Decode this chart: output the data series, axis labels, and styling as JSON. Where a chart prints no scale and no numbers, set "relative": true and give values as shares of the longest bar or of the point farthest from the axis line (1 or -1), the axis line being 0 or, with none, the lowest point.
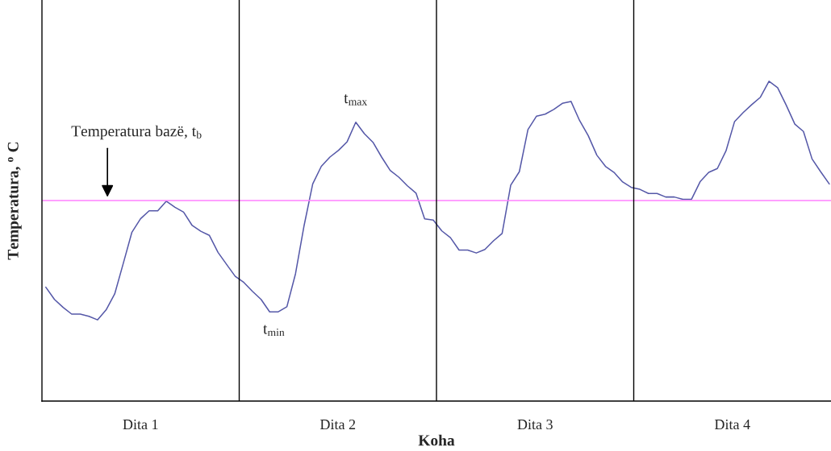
{
  "chart_data": {
    "type": "line",
    "relative": true,
    "xlabel": "Koha",
    "ylabel": "Temperatura, $^{o}$ C",
    "categories": [
      null,
      null,
      null,
      null,
      null,
      null,
      null,
      null,
      null,
      null,
      null,
      null,
      null,
      null,
      null,
      null,
      null,
      null,
      null,
      null,
      null,
      null,
      null,
      null,
      null,
      null,
      null,
      null,
      null,
      null,
      null,
      null,
      null,
      null,
      null,
      null,
      null,
      null,
      null,
      null,
      null,
      null,
      null,
      null,
      null,
      null,
      null,
      null,
      null,
      null,
      null,
      null,
      null,
      null,
      null,
      null,
      null,
      null,
      null,
      null,
      null,
      null,
      null,
      null,
      null,
      null,
      null,
      null,
      null,
      null,
      null,
      null,
      null,
      null,
      null,
      null,
      null,
      null,
      null,
      null,
      null,
      null,
      null,
      null,
      null,
      null,
      null,
      null,
      null,
      null,
      null,
      null
    ],
    "legend": false,
    "marker": "none",
    "line_style": "solid",
    "ref_lines": [
      {
        "axis": "y",
        "value": 0.627,
        "label": "Temperatura bazë, t$_{b}$",
        "color": "#ff80ff"
      }
    ],
    "annotations": [
      {
        "text": "t$_{max}$",
        "y": 0.872
      },
      {
        "text": "t$_{min}$",
        "y": 0.279
      },
      "Dita 1",
      "Dita 2",
      "Dita 3",
      "Dita 4"
    ],
    "series": [
      {
        "color": "#5558a8",
        "values": [
          0.356,
          0.318,
          0.293,
          0.272,
          0.272,
          0.265,
          0.254,
          0.285,
          0.335,
          0.431,
          0.528,
          0.57,
          0.595,
          0.595,
          0.625,
          0.606,
          0.591,
          0.549,
          0.531,
          0.518,
          0.465,
          0.427,
          0.39,
          0.371,
          0.343,
          0.318,
          0.279,
          0.279,
          0.295,
          0.398,
          0.549,
          0.679,
          0.734,
          0.763,
          0.784,
          0.811,
          0.872,
          0.836,
          0.809,
          0.763,
          0.721,
          0.7,
          0.673,
          0.65,
          0.57,
          0.566,
          0.532,
          0.511,
          0.472,
          0.472,
          0.463,
          0.474,
          0.501,
          0.524,
          0.675,
          0.717,
          0.849,
          0.891,
          0.897,
          0.912,
          0.931,
          0.937,
          0.877,
          0.83,
          0.769,
          0.734,
          0.715,
          0.685,
          0.668,
          0.662,
          0.649,
          0.649,
          0.638,
          0.638,
          0.631,
          0.631,
          0.686,
          0.715,
          0.727,
          0.782,
          0.874,
          0.902,
          0.927,
          0.95,
          1.0,
          0.98,
          0.925,
          0.866,
          0.843,
          0.757,
          0.717,
          0.679
        ]
      }
    ]
  }
}
